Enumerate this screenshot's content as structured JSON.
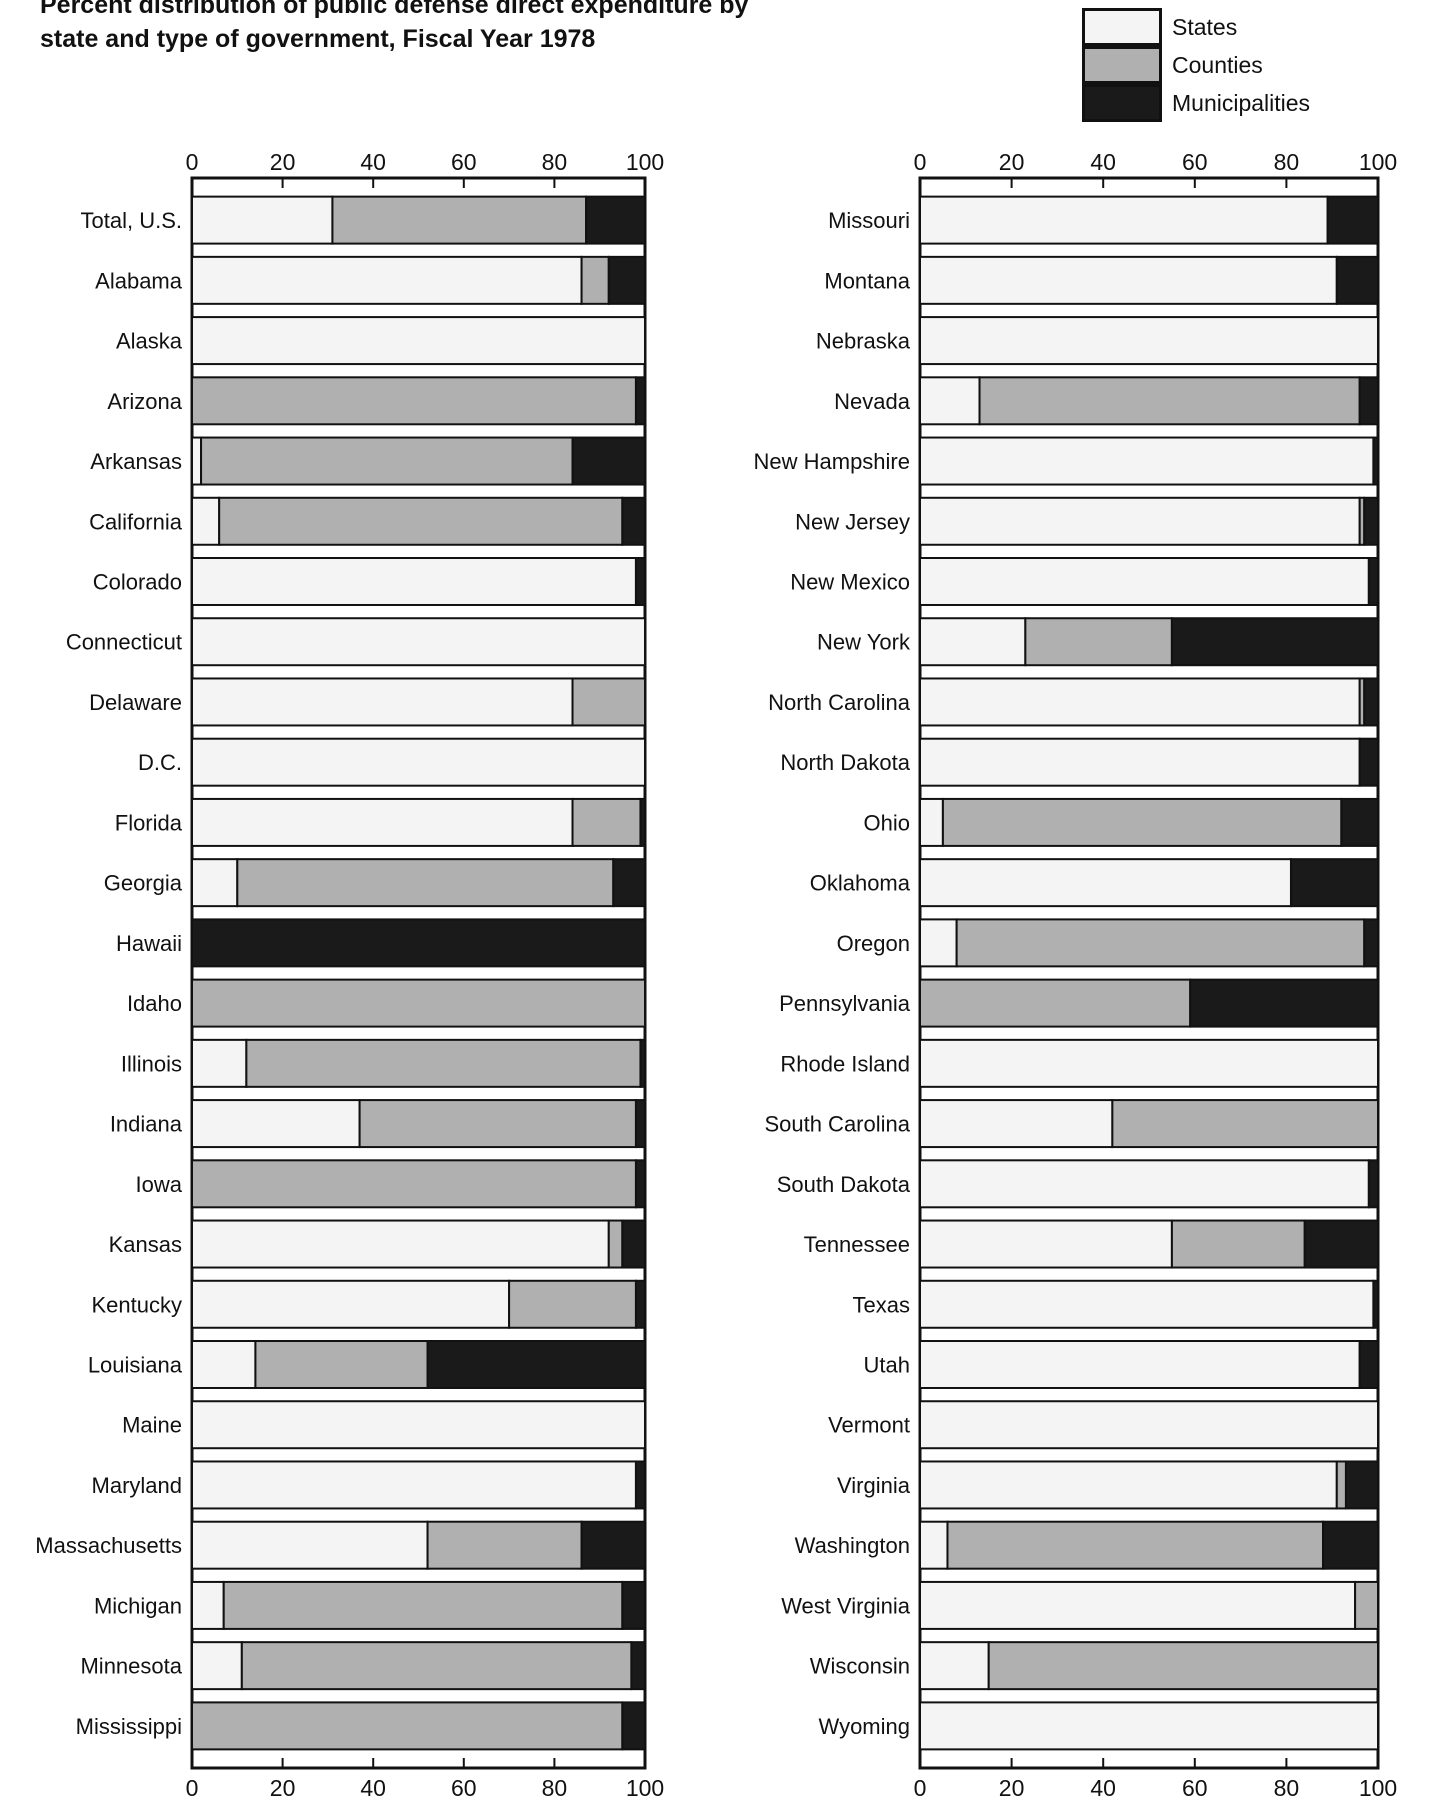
{
  "title": {
    "line1": "Percent distribution of public defense direct expenditure by",
    "line2": "state and type of government, Fiscal Year 1978"
  },
  "legend": [
    {
      "label": "States",
      "color": "#f4f4f4"
    },
    {
      "label": "Counties",
      "color": "#b0b0b0"
    },
    {
      "label": "Municipalities",
      "color": "#1a1a1a"
    }
  ],
  "chart_data": [
    {
      "type": "bar",
      "orientation": "horizontal",
      "stacked": true,
      "xlim": [
        0,
        100
      ],
      "xticks": [
        0,
        20,
        40,
        60,
        80,
        100
      ],
      "categories": [
        "Total, U.S.",
        "Alabama",
        "Alaska",
        "Arizona",
        "Arkansas",
        "California",
        "Colorado",
        "Connecticut",
        "Delaware",
        "D.C.",
        "Florida",
        "Georgia",
        "Hawaii",
        "Idaho",
        "Illinois",
        "Indiana",
        "Iowa",
        "Kansas",
        "Kentucky",
        "Louisiana",
        "Maine",
        "Maryland",
        "Massachusetts",
        "Michigan",
        "Minnesota",
        "Mississippi"
      ],
      "series": [
        {
          "name": "States",
          "values": [
            31,
            86,
            100,
            0,
            2,
            6,
            98,
            100,
            84,
            100,
            84,
            10,
            0,
            0,
            12,
            37,
            0,
            92,
            70,
            14,
            100,
            98,
            52,
            7,
            11,
            0
          ]
        },
        {
          "name": "Counties",
          "values": [
            56,
            6,
            0,
            98,
            82,
            89,
            0,
            0,
            16,
            0,
            15,
            83,
            0,
            100,
            87,
            61,
            98,
            3,
            28,
            38,
            0,
            0,
            34,
            88,
            86,
            95
          ]
        },
        {
          "name": "Municipalities",
          "values": [
            13,
            8,
            0,
            2,
            16,
            5,
            2,
            0,
            0,
            0,
            1,
            7,
            100,
            0,
            1,
            2,
            2,
            5,
            2,
            48,
            0,
            2,
            14,
            5,
            3,
            5
          ]
        }
      ]
    },
    {
      "type": "bar",
      "orientation": "horizontal",
      "stacked": true,
      "xlim": [
        0,
        100
      ],
      "xticks": [
        0,
        20,
        40,
        60,
        80,
        100
      ],
      "categories": [
        "Missouri",
        "Montana",
        "Nebraska",
        "Nevada",
        "New Hampshire",
        "New Jersey",
        "New Mexico",
        "New York",
        "North Carolina",
        "North Dakota",
        "Ohio",
        "Oklahoma",
        "Oregon",
        "Pennsylvania",
        "Rhode Island",
        "South Carolina",
        "South Dakota",
        "Tennessee",
        "Texas",
        "Utah",
        "Vermont",
        "Virginia",
        "Washington",
        "West Virginia",
        "Wisconsin",
        "Wyoming"
      ],
      "series": [
        {
          "name": "States",
          "values": [
            89,
            91,
            100,
            13,
            99,
            96,
            98,
            23,
            96,
            96,
            5,
            81,
            8,
            0,
            100,
            42,
            98,
            55,
            99,
            96,
            100,
            91,
            6,
            95,
            15,
            100
          ]
        },
        {
          "name": "Counties",
          "values": [
            0,
            0,
            0,
            83,
            0,
            1,
            0,
            32,
            1,
            0,
            87,
            0,
            89,
            59,
            0,
            58,
            0,
            29,
            0,
            0,
            0,
            2,
            82,
            5,
            85,
            0
          ]
        },
        {
          "name": "Municipalities",
          "values": [
            11,
            9,
            0,
            4,
            1,
            3,
            2,
            45,
            3,
            4,
            8,
            19,
            3,
            41,
            0,
            0,
            2,
            16,
            1,
            4,
            0,
            7,
            12,
            0,
            0,
            0
          ]
        }
      ]
    }
  ]
}
